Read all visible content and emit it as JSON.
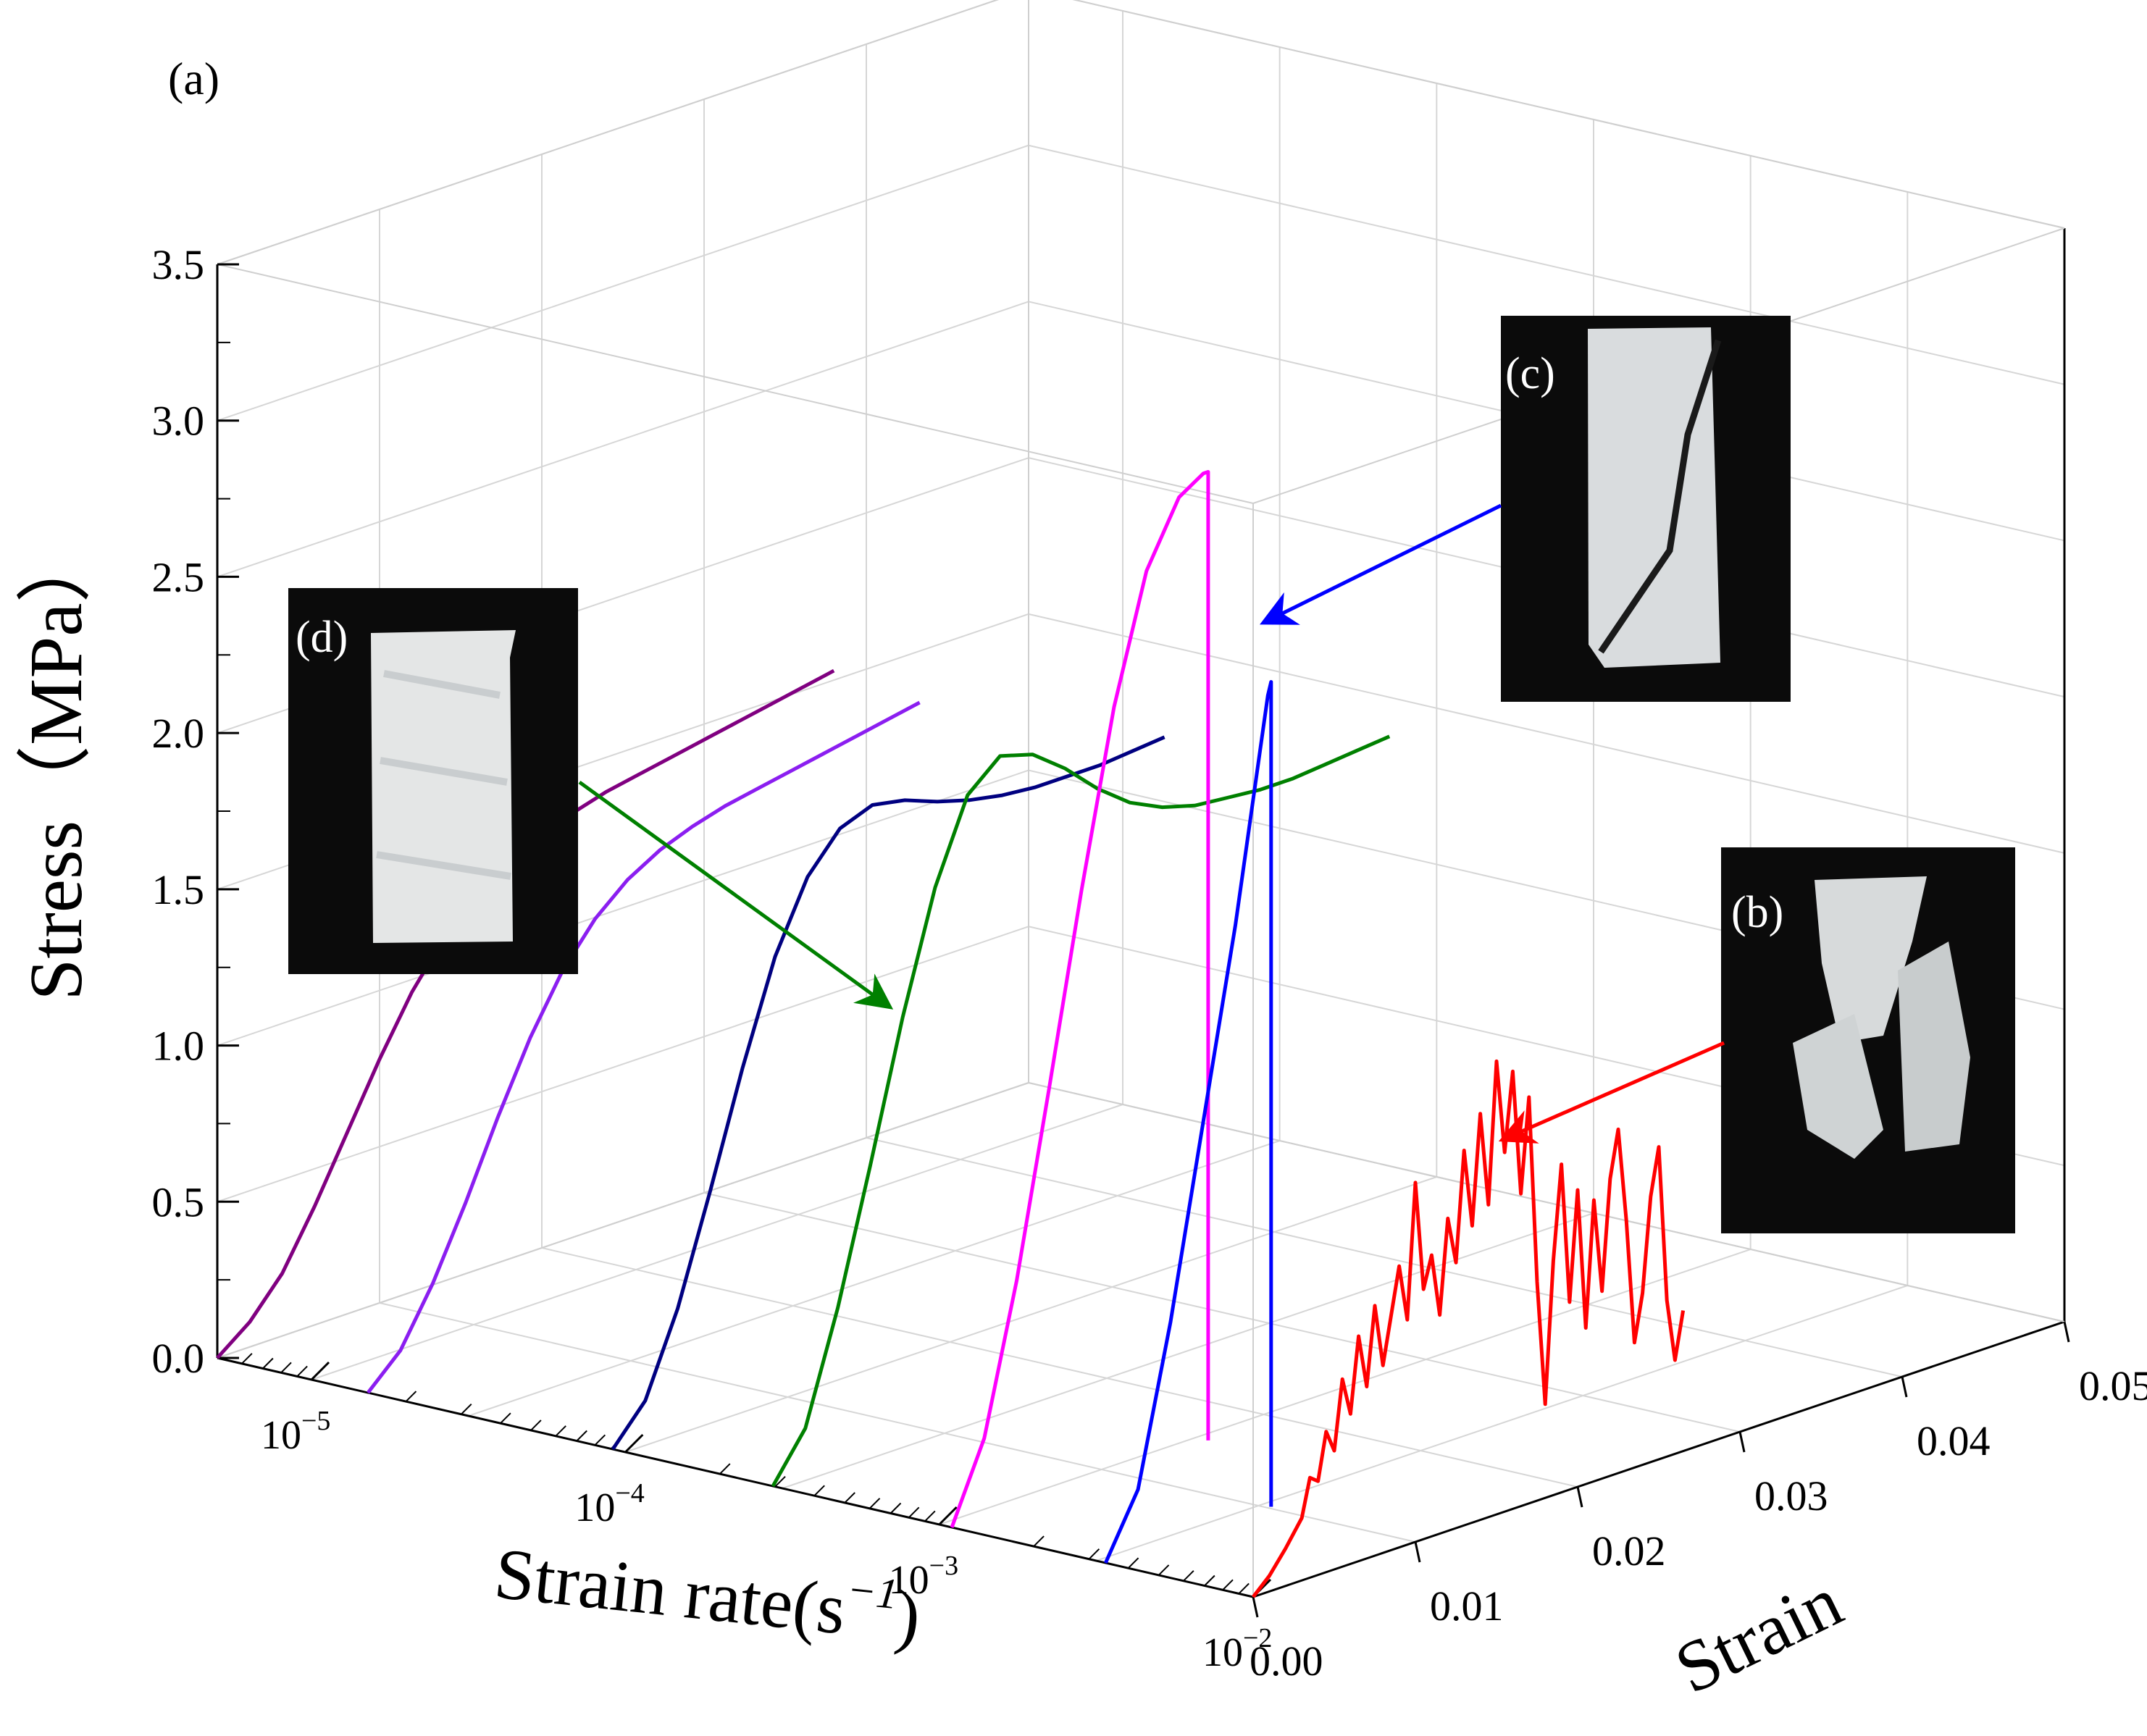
{
  "chart_data": {
    "type": "line",
    "projection": "3d",
    "panel_label": "(a)",
    "axes": {
      "stress": {
        "label_main": "Stress",
        "label_unit": "（MPa）",
        "range": [
          0,
          3.5
        ],
        "ticks": [
          {
            "value": 0.0,
            "label": "0.0"
          },
          {
            "value": 0.5,
            "label": "0.5"
          },
          {
            "value": 1.0,
            "label": "1.0"
          },
          {
            "value": 1.5,
            "label": "1.5"
          },
          {
            "value": 2.0,
            "label": "2.0"
          },
          {
            "value": 2.5,
            "label": "2.5"
          },
          {
            "value": 3.0,
            "label": "3.0"
          },
          {
            "value": 3.5,
            "label": "3.5"
          }
        ]
      },
      "strain_rate": {
        "label_text": "Strain rate(s",
        "label_sup": "−1",
        "label_close": ")",
        "scale": "log",
        "range_exp": [
          -5.3,
          -2
        ],
        "ticks": [
          {
            "exp": -5,
            "base": "10",
            "sup": "−5"
          },
          {
            "exp": -4,
            "base": "10",
            "sup": "−4"
          },
          {
            "exp": -3,
            "base": "10",
            "sup": "−3"
          },
          {
            "exp": -2,
            "base": "10",
            "sup": "−2"
          }
        ]
      },
      "strain": {
        "label": "Strain",
        "range": [
          0,
          0.05
        ],
        "ticks": [
          {
            "value": 0.0,
            "label": "0.00"
          },
          {
            "value": 0.01,
            "label": "0.01"
          },
          {
            "value": 0.02,
            "label": "0.02"
          },
          {
            "value": 0.03,
            "label": "0.03"
          },
          {
            "value": 0.04,
            "label": "0.04"
          },
          {
            "value": 0.05,
            "label": "0.05"
          }
        ]
      }
    },
    "series": [
      {
        "name": "purple",
        "color": "#800080",
        "strain_rate_exp": -5.3,
        "points": [
          [
            0.0,
            0
          ],
          [
            0.002,
            0.08
          ],
          [
            0.004,
            0.2
          ],
          [
            0.006,
            0.38
          ],
          [
            0.008,
            0.58
          ],
          [
            0.01,
            0.78
          ],
          [
            0.012,
            0.96
          ],
          [
            0.014,
            1.1
          ],
          [
            0.016,
            1.2
          ],
          [
            0.018,
            1.27
          ],
          [
            0.02,
            1.32
          ],
          [
            0.022,
            1.36
          ],
          [
            0.024,
            1.39
          ],
          [
            0.026,
            1.41
          ],
          [
            0.028,
            1.43
          ],
          [
            0.03,
            1.45
          ],
          [
            0.032,
            1.47
          ],
          [
            0.034,
            1.49
          ],
          [
            0.036,
            1.51
          ],
          [
            0.038,
            1.53
          ]
        ]
      },
      {
        "name": "violet",
        "color": "#8b1ef0",
        "strain_rate_exp": -4.82,
        "points": [
          [
            0.0,
            0
          ],
          [
            0.002,
            0.1
          ],
          [
            0.004,
            0.28
          ],
          [
            0.006,
            0.5
          ],
          [
            0.008,
            0.74
          ],
          [
            0.01,
            0.96
          ],
          [
            0.012,
            1.14
          ],
          [
            0.014,
            1.27
          ],
          [
            0.016,
            1.36
          ],
          [
            0.018,
            1.42
          ],
          [
            0.02,
            1.46
          ],
          [
            0.022,
            1.49
          ],
          [
            0.024,
            1.51
          ],
          [
            0.026,
            1.53
          ],
          [
            0.028,
            1.55
          ],
          [
            0.03,
            1.57
          ],
          [
            0.032,
            1.59
          ],
          [
            0.034,
            1.61
          ]
        ]
      },
      {
        "name": "navy",
        "color": "#000080",
        "strain_rate_exp": -4.04,
        "points": [
          [
            0.0,
            0
          ],
          [
            0.002,
            0.12
          ],
          [
            0.004,
            0.38
          ],
          [
            0.006,
            0.72
          ],
          [
            0.008,
            1.08
          ],
          [
            0.01,
            1.4
          ],
          [
            0.012,
            1.62
          ],
          [
            0.014,
            1.74
          ],
          [
            0.016,
            1.78
          ],
          [
            0.018,
            1.76
          ],
          [
            0.02,
            1.72
          ],
          [
            0.022,
            1.69
          ],
          [
            0.024,
            1.67
          ],
          [
            0.026,
            1.66
          ],
          [
            0.028,
            1.66
          ],
          [
            0.03,
            1.66
          ],
          [
            0.032,
            1.67
          ],
          [
            0.034,
            1.68
          ]
        ]
      },
      {
        "name": "green",
        "color": "#008000",
        "strain_rate_exp": -3.53,
        "points": [
          [
            0.0,
            0
          ],
          [
            0.002,
            0.15
          ],
          [
            0.004,
            0.5
          ],
          [
            0.006,
            0.92
          ],
          [
            0.008,
            1.36
          ],
          [
            0.01,
            1.74
          ],
          [
            0.012,
            2.0
          ],
          [
            0.014,
            2.09
          ],
          [
            0.016,
            2.06
          ],
          [
            0.018,
            1.98
          ],
          [
            0.02,
            1.88
          ],
          [
            0.022,
            1.8
          ],
          [
            0.024,
            1.75
          ],
          [
            0.026,
            1.72
          ],
          [
            0.028,
            1.71
          ],
          [
            0.03,
            1.7
          ],
          [
            0.032,
            1.7
          ],
          [
            0.034,
            1.71
          ],
          [
            0.036,
            1.72
          ],
          [
            0.038,
            1.73
          ]
        ]
      },
      {
        "name": "magenta",
        "color": "#ff00ff",
        "strain_rate_exp": -2.96,
        "points": [
          [
            0.0,
            0
          ],
          [
            0.002,
            0.25
          ],
          [
            0.004,
            0.72
          ],
          [
            0.006,
            1.3
          ],
          [
            0.008,
            1.9
          ],
          [
            0.01,
            2.45
          ],
          [
            0.012,
            2.85
          ],
          [
            0.014,
            3.05
          ],
          [
            0.0155,
            3.1
          ],
          [
            0.0158,
            3.1
          ],
          [
            0.0158,
            0.0
          ]
        ]
      },
      {
        "name": "blue",
        "color": "#0000ff",
        "strain_rate_exp": -2.47,
        "points": [
          [
            0.0,
            0
          ],
          [
            0.002,
            0.2
          ],
          [
            0.004,
            0.7
          ],
          [
            0.006,
            1.3
          ],
          [
            0.008,
            1.9
          ],
          [
            0.009,
            2.25
          ],
          [
            0.01,
            2.6
          ],
          [
            0.0102,
            2.64
          ],
          [
            0.0102,
            0.0
          ]
        ]
      },
      {
        "name": "red",
        "color": "#ff0000",
        "strain_rate_exp": -2.0,
        "points": [
          [
            0.0,
            0
          ],
          [
            0.001,
            0.05
          ],
          [
            0.002,
            0.12
          ],
          [
            0.003,
            0.2
          ],
          [
            0.0035,
            0.32
          ],
          [
            0.004,
            0.3
          ],
          [
            0.0045,
            0.45
          ],
          [
            0.005,
            0.38
          ],
          [
            0.0055,
            0.6
          ],
          [
            0.006,
            0.48
          ],
          [
            0.0065,
            0.72
          ],
          [
            0.007,
            0.55
          ],
          [
            0.0075,
            0.8
          ],
          [
            0.008,
            0.6
          ],
          [
            0.009,
            0.9
          ],
          [
            0.0095,
            0.72
          ],
          [
            0.01,
            1.15
          ],
          [
            0.0105,
            0.8
          ],
          [
            0.011,
            0.9
          ],
          [
            0.0115,
            0.7
          ],
          [
            0.012,
            1.0
          ],
          [
            0.0125,
            0.85
          ],
          [
            0.013,
            1.2
          ],
          [
            0.0135,
            0.95
          ],
          [
            0.014,
            1.3
          ],
          [
            0.0145,
            1.0
          ],
          [
            0.015,
            1.45
          ],
          [
            0.0155,
            1.15
          ],
          [
            0.016,
            1.4
          ],
          [
            0.0165,
            1.0
          ],
          [
            0.017,
            1.3
          ],
          [
            0.0175,
            0.7
          ],
          [
            0.018,
            0.3
          ],
          [
            0.0185,
            0.75
          ],
          [
            0.019,
            1.05
          ],
          [
            0.0195,
            0.6
          ],
          [
            0.02,
            0.95
          ],
          [
            0.0205,
            0.5
          ],
          [
            0.021,
            0.9
          ],
          [
            0.0215,
            0.6
          ],
          [
            0.022,
            0.95
          ],
          [
            0.0225,
            1.1
          ],
          [
            0.023,
            0.8
          ],
          [
            0.0235,
            0.4
          ],
          [
            0.024,
            0.55
          ],
          [
            0.0245,
            0.85
          ],
          [
            0.025,
            1.0
          ],
          [
            0.0255,
            0.5
          ],
          [
            0.026,
            0.3
          ],
          [
            0.0265,
            0.45
          ]
        ]
      }
    ],
    "insets": [
      {
        "label": "(d)",
        "kind": "intact"
      },
      {
        "label": "(c)",
        "kind": "sheared"
      },
      {
        "label": "(b)",
        "kind": "fragmented"
      }
    ],
    "arrows": [
      {
        "from_inset": "(d)",
        "color": "#008000"
      },
      {
        "from_inset": "(c)",
        "color": "#0000ff"
      },
      {
        "from_inset": "(b)",
        "color": "#ff0000"
      }
    ]
  }
}
